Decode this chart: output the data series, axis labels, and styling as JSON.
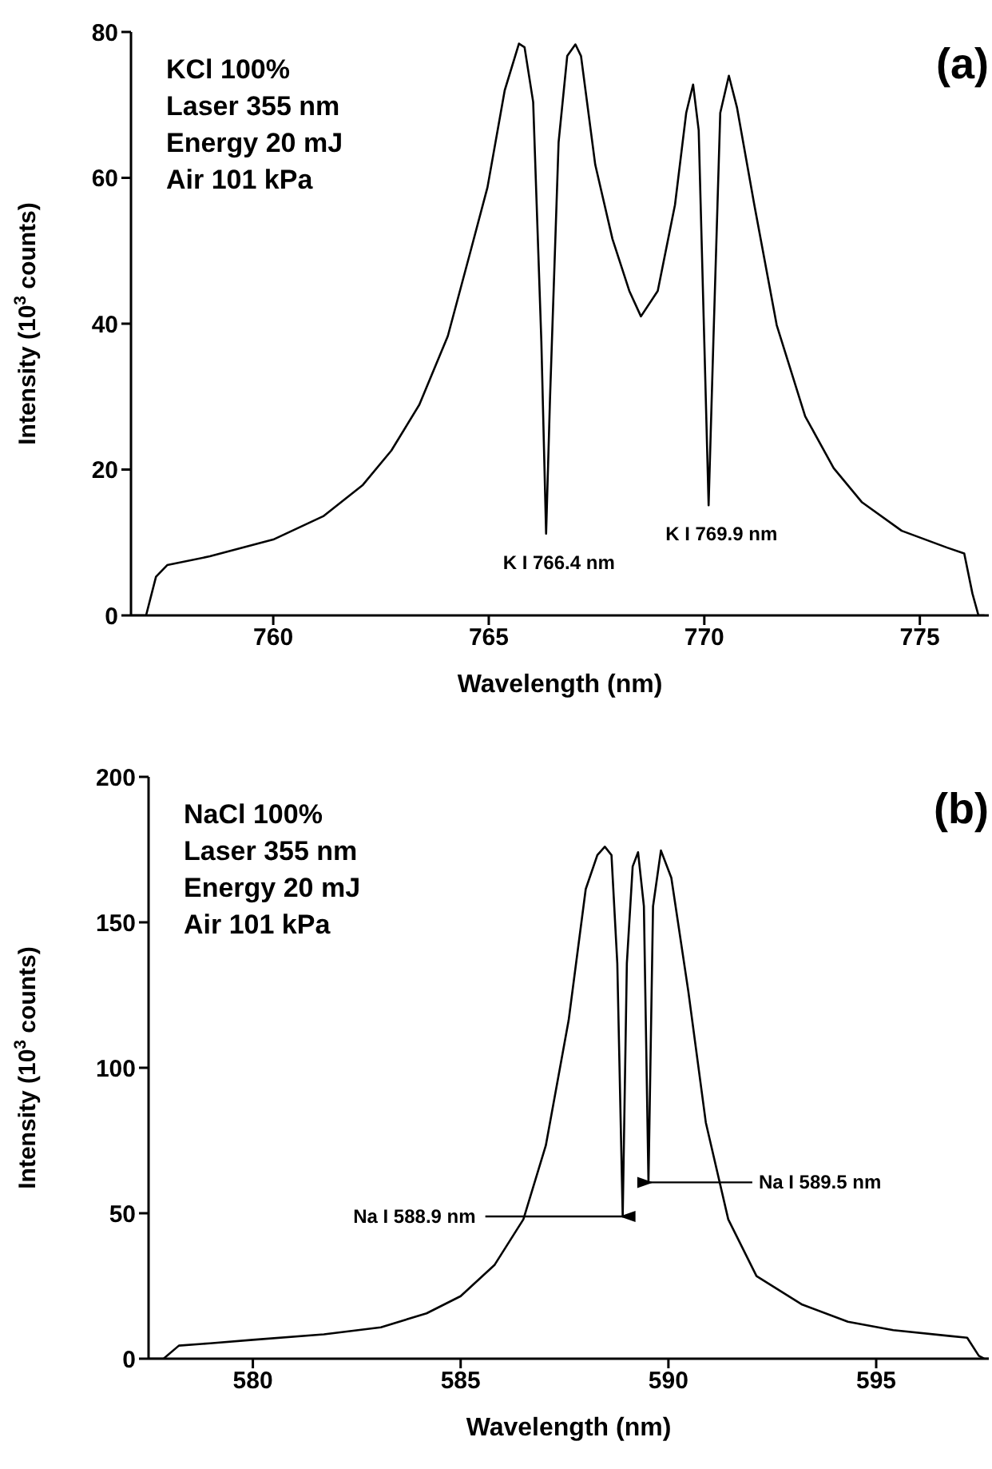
{
  "chart_data": [
    {
      "type": "line",
      "xlabel": "Wavelength (nm)",
      "ylabel": "Intensity (10$^{3}$ counts)",
      "xlim": [
        756.7,
        776.6
      ],
      "xticks": [
        760,
        765,
        770,
        775
      ],
      "ylim": [
        0,
        80
      ],
      "yticks": [
        0,
        20,
        40,
        60,
        80
      ],
      "series": [
        {
          "color": "#000000",
          "x": [
            756.7,
            757.05,
            757.28,
            757.54,
            758.53,
            760,
            761.16,
            762.08,
            762.74,
            763.39,
            764.05,
            764.58,
            764.97,
            765.37,
            765.7,
            765.83,
            766.03,
            766.22,
            766.33,
            766.42,
            766.62,
            766.82,
            767.01,
            767.14,
            767.47,
            767.87,
            768.26,
            768.53,
            768.92,
            769.32,
            769.58,
            769.74,
            769.87,
            770,
            770.1,
            770.21,
            770.37,
            770.57,
            770.76,
            771.16,
            771.68,
            772.34,
            773,
            773.66,
            774.58,
            775.63,
            776.03,
            776.22,
            776.36,
            776.5
          ],
          "values": [
            0,
            0,
            5.3,
            6.9,
            8.1,
            10.4,
            13.6,
            17.9,
            22.6,
            28.9,
            38.3,
            50,
            58.7,
            72,
            78.4,
            77.9,
            70.4,
            37.5,
            11.2,
            29.6,
            64.9,
            76.7,
            78.3,
            76.7,
            61.8,
            51.6,
            44.5,
            41,
            44.5,
            56.3,
            68.9,
            72.8,
            66.5,
            37.5,
            15.1,
            37.5,
            68.9,
            74,
            69.6,
            56.3,
            39.8,
            27.3,
            20.2,
            15.5,
            11.6,
            9.3,
            8.5,
            3,
            0,
            0
          ]
        }
      ],
      "annotations": [
        "KCl 100%",
        "Laser 355 nm",
        "Energy 20 mJ",
        "Air 101 kPa",
        "(a)",
        {
          "text": "K I 766.4 nm",
          "x": 766.33,
          "y": 11.2
        },
        {
          "text": "K I 769.9 nm",
          "x": 770.1,
          "y": 15.1
        }
      ]
    },
    {
      "type": "line",
      "xlabel": "Wavelength (nm)",
      "ylabel": "Intensity (10$^{3}$ counts)",
      "xlim": [
        577.49,
        597.71
      ],
      "xticks": [
        580,
        585,
        590,
        595
      ],
      "ylim": [
        0,
        200
      ],
      "yticks": [
        0,
        50,
        100,
        150,
        200
      ],
      "series": [
        {
          "color": "#000000",
          "x": [
            577.49,
            577.85,
            578.22,
            578.97,
            580,
            581.71,
            583.08,
            584.18,
            585,
            585.82,
            586.51,
            587.05,
            587.6,
            588.01,
            588.29,
            588.47,
            588.63,
            588.77,
            588.9,
            589,
            589.14,
            589.27,
            589.41,
            589.52,
            589.63,
            589.82,
            590.07,
            590.48,
            590.9,
            591.44,
            592.12,
            593.22,
            594.32,
            595.41,
            596.78,
            597.19,
            597.47,
            597.6,
            597.71
          ],
          "values": [
            0,
            0,
            4.5,
            5.3,
            6.5,
            8.4,
            10.8,
            15.6,
            21.5,
            32.3,
            47.9,
            73.3,
            116.4,
            161.4,
            173.1,
            176,
            173.1,
            135.9,
            48.9,
            135.9,
            169.2,
            174.1,
            155.5,
            60.6,
            155.5,
            174.7,
            165.3,
            126.2,
            81.2,
            47.9,
            28.4,
            18.6,
            12.7,
            9.8,
            7.8,
            7.2,
            1,
            0,
            0
          ]
        }
      ],
      "annotations": [
        "NaCl 100%",
        "Laser 355 nm",
        "Energy 20 mJ",
        "Air 101 kPa",
        "(b)",
        {
          "text": "Na I 588.9 nm",
          "x": 588.9,
          "y": 48.9
        },
        {
          "text": "Na I 589.5 nm",
          "x": 589.52,
          "y": 60.6
        }
      ]
    }
  ]
}
